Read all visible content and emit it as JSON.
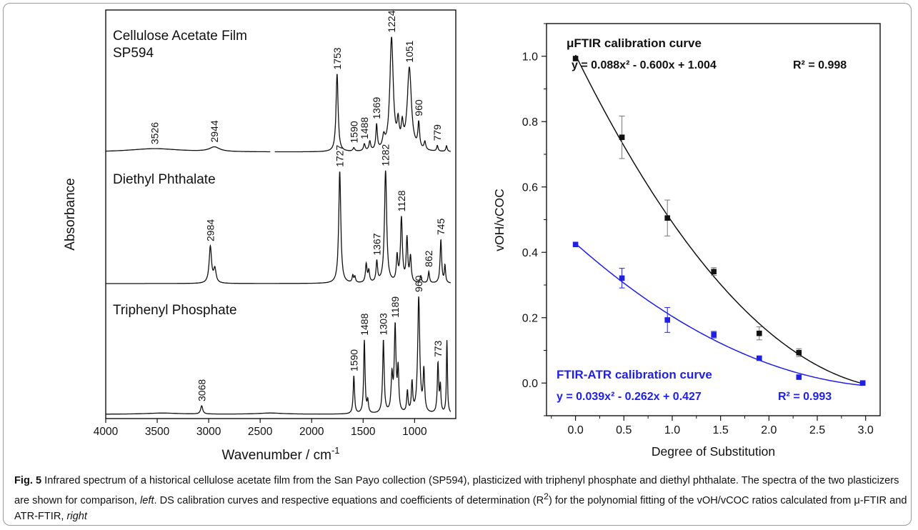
{
  "caption": {
    "label": "Fig. 5",
    "text_1": "Infrared spectrum of a historical cellulose acetate film from the San Payo collection (SP594), plasticized with triphenyl phosphate and diethyl phthalate. The spectra of the two plasticizers are shown for comparison, ",
    "left_word": "left",
    "text_2": ". DS calibration curves and respective equations and coefficients of determination (R",
    "sup": "2",
    "text_3": ") for the polynomial fitting of the vOH/vCOC ratios calculated from μ-FTIR and ATR-FTIR, ",
    "right_word": "right"
  },
  "colors": {
    "black_series": "#111111",
    "blue_series": "#1f1fe6",
    "frame": "#9a9a9a"
  },
  "chart_data": [
    {
      "type": "line",
      "xlabel": "Wavenumber / cm",
      "xlabel_sup": "-1",
      "ylabel": "Absorbance",
      "xlim": [
        4000,
        600
      ],
      "x_ticks": [
        4000,
        3500,
        3000,
        2500,
        2000,
        1500,
        1000
      ],
      "grid": false,
      "series": [
        {
          "name": "Cellulose Acetate Film",
          "name_line2": "SP594",
          "peak_labels": [
            "3526",
            "2944",
            "1753",
            "1590",
            "1488",
            "1369",
            "1224",
            "1051",
            "960",
            "779"
          ],
          "peaks": [
            {
              "x": 3526,
              "h": 0.03,
              "w": 300
            },
            {
              "x": 2944,
              "h": 0.04,
              "w": 60
            },
            {
              "x": 1753,
              "h": 0.68,
              "w": 12
            },
            {
              "x": 1590,
              "h": 0.03,
              "w": 10
            },
            {
              "x": 1488,
              "h": 0.06,
              "w": 10
            },
            {
              "x": 1435,
              "h": 0.08,
              "w": 10
            },
            {
              "x": 1369,
              "h": 0.22,
              "w": 9
            },
            {
              "x": 1300,
              "h": 0.1,
              "w": 14
            },
            {
              "x": 1224,
              "h": 0.98,
              "w": 20
            },
            {
              "x": 1160,
              "h": 0.2,
              "w": 12
            },
            {
              "x": 1120,
              "h": 0.18,
              "w": 12
            },
            {
              "x": 1051,
              "h": 0.72,
              "w": 24
            },
            {
              "x": 960,
              "h": 0.22,
              "w": 10
            },
            {
              "x": 900,
              "h": 0.07,
              "w": 10
            },
            {
              "x": 779,
              "h": 0.05,
              "w": 8
            },
            {
              "x": 690,
              "h": 0.05,
              "w": 8
            }
          ]
        },
        {
          "name": "Diethyl Phthalate",
          "peak_labels": [
            "2984",
            "1727",
            "1367",
            "1282",
            "1128",
            "862",
            "745"
          ],
          "peaks": [
            {
              "x": 2984,
              "h": 0.32,
              "w": 14
            },
            {
              "x": 2940,
              "h": 0.12,
              "w": 14
            },
            {
              "x": 1727,
              "h": 0.98,
              "w": 12
            },
            {
              "x": 1600,
              "h": 0.06,
              "w": 8
            },
            {
              "x": 1580,
              "h": 0.05,
              "w": 8
            },
            {
              "x": 1470,
              "h": 0.16,
              "w": 9
            },
            {
              "x": 1445,
              "h": 0.1,
              "w": 9
            },
            {
              "x": 1367,
              "h": 0.18,
              "w": 9
            },
            {
              "x": 1282,
              "h": 0.98,
              "w": 13
            },
            {
              "x": 1170,
              "h": 0.22,
              "w": 9
            },
            {
              "x": 1128,
              "h": 0.56,
              "w": 11
            },
            {
              "x": 1074,
              "h": 0.38,
              "w": 9
            },
            {
              "x": 1040,
              "h": 0.22,
              "w": 9
            },
            {
              "x": 940,
              "h": 0.06,
              "w": 8
            },
            {
              "x": 862,
              "h": 0.1,
              "w": 8
            },
            {
              "x": 745,
              "h": 0.38,
              "w": 9
            },
            {
              "x": 705,
              "h": 0.15,
              "w": 7
            }
          ]
        },
        {
          "name": "Triphenyl Phosphate",
          "peak_labels": [
            "3068",
            "1590",
            "1488",
            "1303",
            "1189",
            "960",
            "773"
          ],
          "peaks": [
            {
              "x": 3068,
              "h": 0.07,
              "w": 12
            },
            {
              "x": 3450,
              "h": 0.01,
              "w": 200
            },
            {
              "x": 2400,
              "h": 0.01,
              "w": 150
            },
            {
              "x": 1590,
              "h": 0.32,
              "w": 8
            },
            {
              "x": 1488,
              "h": 0.62,
              "w": 8
            },
            {
              "x": 1455,
              "h": 0.1,
              "w": 8
            },
            {
              "x": 1303,
              "h": 0.62,
              "w": 9
            },
            {
              "x": 1220,
              "h": 0.3,
              "w": 10
            },
            {
              "x": 1189,
              "h": 0.72,
              "w": 10
            },
            {
              "x": 1160,
              "h": 0.35,
              "w": 8
            },
            {
              "x": 1070,
              "h": 0.18,
              "w": 8
            },
            {
              "x": 1025,
              "h": 0.25,
              "w": 8
            },
            {
              "x": 960,
              "h": 0.98,
              "w": 12
            },
            {
              "x": 910,
              "h": 0.35,
              "w": 9
            },
            {
              "x": 773,
              "h": 0.42,
              "w": 8
            },
            {
              "x": 750,
              "h": 0.22,
              "w": 7
            },
            {
              "x": 686,
              "h": 0.62,
              "w": 6
            }
          ]
        }
      ]
    },
    {
      "type": "scatter",
      "xlabel": "Degree of Substitution",
      "ylabel": "vOH/vCOC",
      "xlim": [
        -0.3,
        3.15
      ],
      "ylim": [
        -0.1,
        1.1
      ],
      "x_ticks": [
        "0.0",
        "0.5",
        "1.0",
        "1.5",
        "2.0",
        "2.5",
        "3.0"
      ],
      "y_ticks": [
        "0.0",
        "0.2",
        "0.4",
        "0.6",
        "0.8",
        "1.0"
      ],
      "grid": false,
      "series": [
        {
          "label": "μFTIR calibration curve",
          "equation": "y = 0.088x² - 0.600x + 1.004",
          "r2": "R² = 0.998",
          "coeffs": [
            0.088,
            -0.6,
            1.004
          ],
          "color": "#111111",
          "x": [
            0.0,
            0.48,
            0.95,
            1.43,
            1.9,
            2.31,
            2.97
          ],
          "y": [
            0.993,
            0.752,
            0.505,
            0.341,
            0.152,
            0.093,
            0.0
          ],
          "err": [
            0.005,
            0.065,
            0.055,
            0.012,
            0.02,
            0.012,
            0.005
          ]
        },
        {
          "label": "FTIR-ATR calibration curve",
          "equation": "y = 0.039x² - 0.262x + 0.427",
          "r2": "R² = 0.993",
          "coeffs": [
            0.039,
            -0.262,
            0.427
          ],
          "color": "#1f1fe6",
          "x": [
            0.0,
            0.48,
            0.95,
            1.43,
            1.9,
            2.31,
            2.97
          ],
          "y": [
            0.424,
            0.321,
            0.193,
            0.148,
            0.076,
            0.018,
            0.0
          ],
          "err": [
            0.004,
            0.03,
            0.038,
            0.01,
            0.006,
            0.006,
            0.004
          ]
        }
      ]
    }
  ]
}
